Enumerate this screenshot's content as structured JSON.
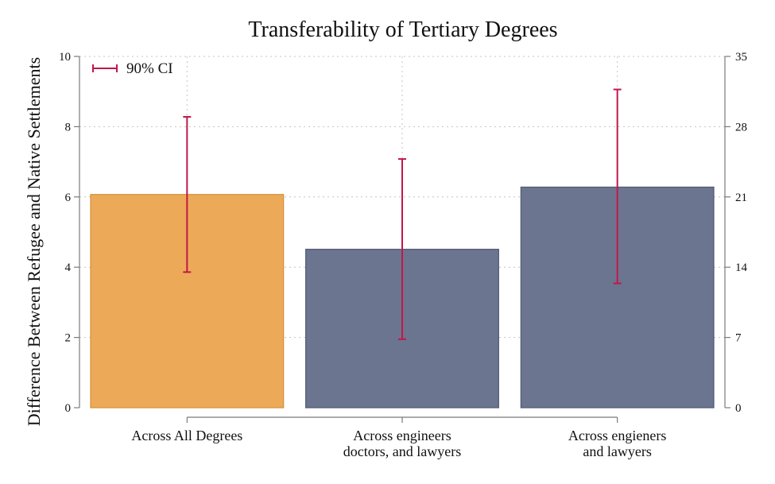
{
  "chart_data": {
    "type": "bar",
    "title": "Transferability of Tertiary Degrees",
    "xlabel": "",
    "ylabel": "Difference Between Refugee and Native Settlements",
    "ylim": [
      0,
      10
    ],
    "yticks": [
      0,
      2,
      4,
      6,
      8,
      10
    ],
    "y2lim": [
      0,
      35
    ],
    "y2ticks": [
      0,
      7,
      14,
      21,
      28,
      35
    ],
    "grid": true,
    "legend": {
      "label": "90% CI",
      "position": "top-left"
    },
    "categories": [
      [
        "Across All Degrees"
      ],
      [
        "Across engineers",
        "doctors, and lawyers"
      ],
      [
        "Across engieners",
        "and lawyers"
      ]
    ],
    "values": [
      6.07,
      4.51,
      6.28
    ],
    "ci_low": [
      3.86,
      1.95,
      3.54
    ],
    "ci_high": [
      8.28,
      7.08,
      9.06
    ],
    "bar_colors": [
      "#ecaa58",
      "#6b758f",
      "#6b758f"
    ],
    "bar_edge_colors": [
      "#d48f36",
      "#4f5873",
      "#4f5873"
    ],
    "ci_color": "#c2174a"
  }
}
